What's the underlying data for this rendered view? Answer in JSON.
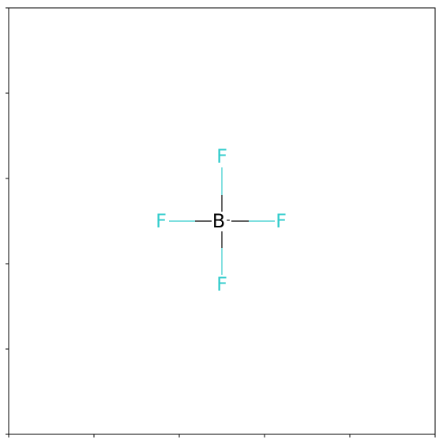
{
  "molecule": {
    "atoms": [
      {
        "symbol": "B",
        "charge": "-"
      },
      {
        "symbol": "F"
      },
      {
        "symbol": "F"
      },
      {
        "symbol": "F"
      },
      {
        "symbol": "F"
      }
    ]
  }
}
